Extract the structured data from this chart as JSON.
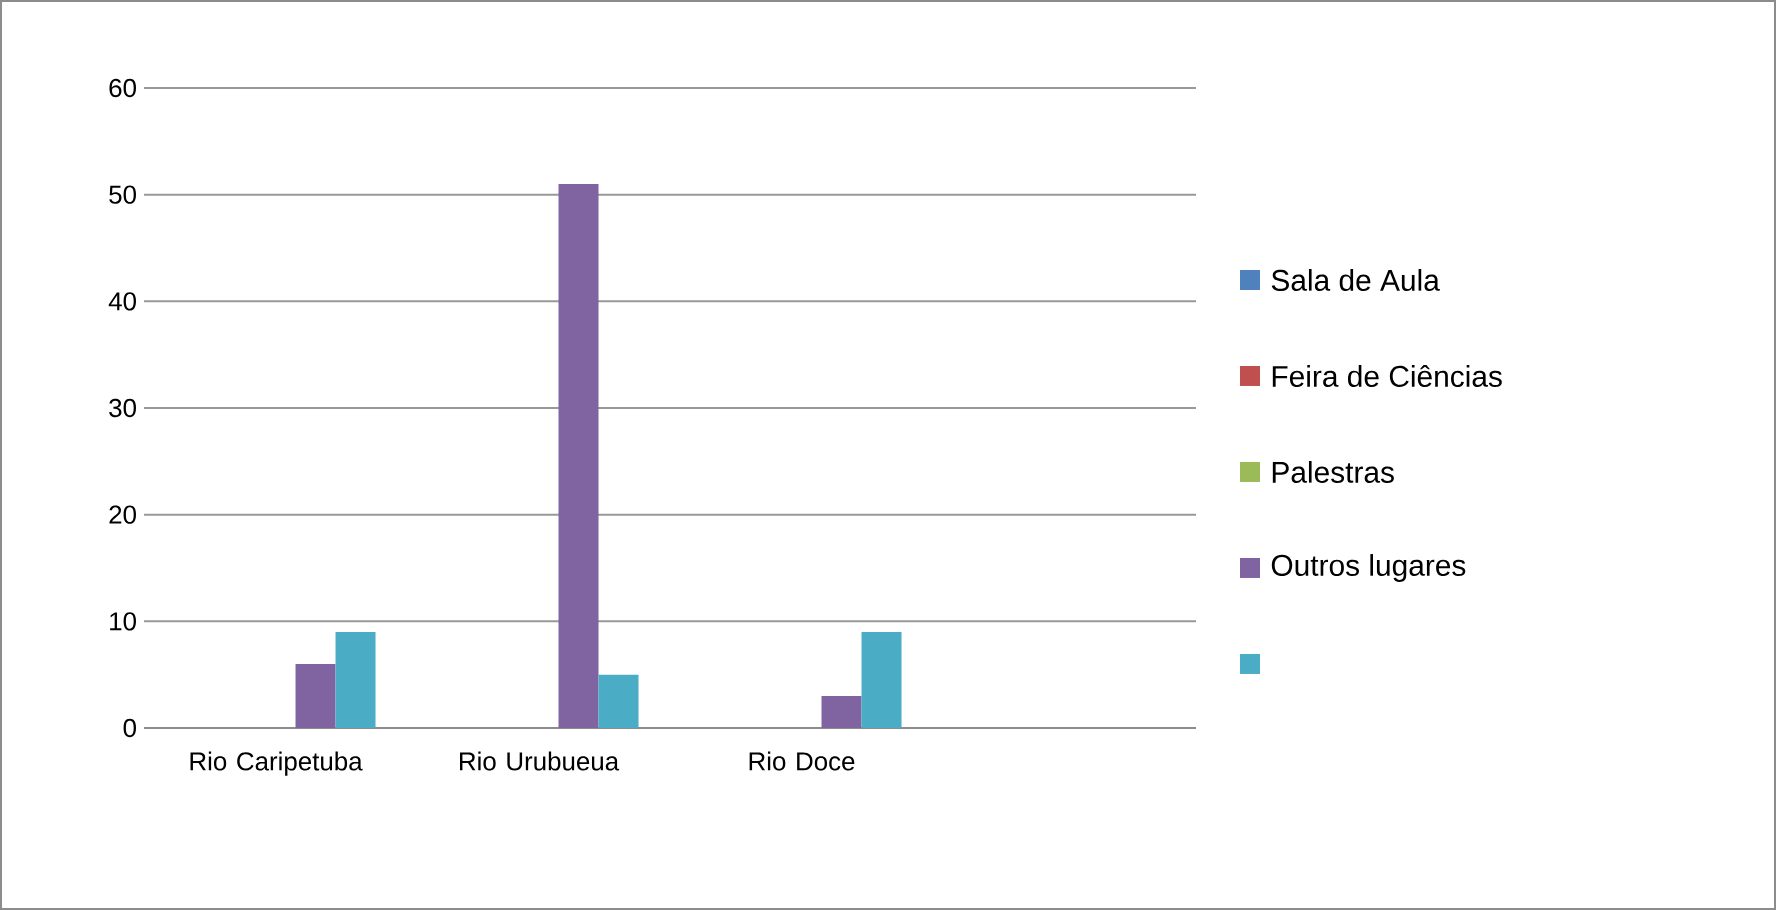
{
  "chart_data": {
    "type": "bar",
    "categories": [
      "Rio Caripetuba",
      "Rio Urubueua",
      "Rio Doce",
      null
    ],
    "series": [
      {
        "name": "Sala de Aula",
        "color": "#4f81bd",
        "values": [
          0,
          0,
          0,
          null
        ]
      },
      {
        "name": "Feira de Ciências",
        "color": "#c0504d",
        "values": [
          0,
          0,
          0,
          null
        ]
      },
      {
        "name": "Palestras",
        "color": "#9bbb59",
        "values": [
          0,
          0,
          0,
          null
        ]
      },
      {
        "name": "Outros lugares",
        "color": "#8064a2",
        "values": [
          6,
          51,
          3,
          null
        ]
      },
      {
        "color": "#4bacc6",
        "values": [
          9,
          5,
          9,
          null
        ]
      }
    ],
    "ylim": [
      0,
      60
    ],
    "yticks": [
      0,
      10,
      20,
      30,
      40,
      50,
      60
    ],
    "grid": "y",
    "legend": "right"
  }
}
